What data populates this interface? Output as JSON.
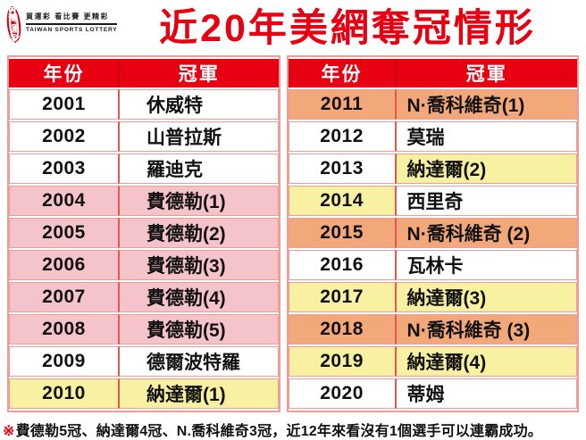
{
  "logo": {
    "circle_top": "台灣",
    "circle_bottom": "運彩",
    "slogan": "買運彩 看比賽 更精彩",
    "name_en": "TAIWAN SPORTS LOTTERY"
  },
  "title": "近20年美網奪冠情形",
  "table_headers": {
    "year": "年份",
    "champion": "冠軍"
  },
  "tables": {
    "left": [
      {
        "year": "2001",
        "champion": "休威特",
        "year_bg": "white",
        "champion_bg": "white"
      },
      {
        "year": "2002",
        "champion": "山普拉斯",
        "year_bg": "white",
        "champion_bg": "white"
      },
      {
        "year": "2003",
        "champion": "羅迪克",
        "year_bg": "white",
        "champion_bg": "white"
      },
      {
        "year": "2004",
        "champion": "費德勒(1)",
        "year_bg": "pink",
        "champion_bg": "pink"
      },
      {
        "year": "2005",
        "champion": "費德勒(2)",
        "year_bg": "pink",
        "champion_bg": "pink"
      },
      {
        "year": "2006",
        "champion": "費德勒(3)",
        "year_bg": "pink",
        "champion_bg": "pink"
      },
      {
        "year": "2007",
        "champion": "費德勒(4)",
        "year_bg": "pink",
        "champion_bg": "pink"
      },
      {
        "year": "2008",
        "champion": "費德勒(5)",
        "year_bg": "pink",
        "champion_bg": "pink"
      },
      {
        "year": "2009",
        "champion": "德爾波特羅",
        "year_bg": "white",
        "champion_bg": "white"
      },
      {
        "year": "2010",
        "champion": "納達爾(1)",
        "year_bg": "yellow",
        "champion_bg": "yellow"
      }
    ],
    "right": [
      {
        "year": "2011",
        "champion": "N·喬科維奇(1)",
        "year_bg": "orange",
        "champion_bg": "orange"
      },
      {
        "year": "2012",
        "champion": "莫瑞",
        "year_bg": "white",
        "champion_bg": "white"
      },
      {
        "year": "2013",
        "champion": "納達爾(2)",
        "year_bg": "white",
        "champion_bg": "yellow"
      },
      {
        "year": "2014",
        "champion": "西里奇",
        "year_bg": "yellow",
        "champion_bg": "white"
      },
      {
        "year": "2015",
        "champion": "N·喬科維奇 (2)",
        "year_bg": "orange",
        "champion_bg": "orange"
      },
      {
        "year": "2016",
        "champion": "瓦林卡",
        "year_bg": "white",
        "champion_bg": "white"
      },
      {
        "year": "2017",
        "champion": "納達爾(3)",
        "year_bg": "yellow",
        "champion_bg": "yellow"
      },
      {
        "year": "2018",
        "champion": "N·喬科維奇 (3)",
        "year_bg": "orange",
        "champion_bg": "orange"
      },
      {
        "year": "2019",
        "champion": "納達爾(4)",
        "year_bg": "yellow",
        "champion_bg": "yellow"
      },
      {
        "year": "2020",
        "champion": "蒂姆",
        "year_bg": "white",
        "champion_bg": "white"
      }
    ]
  },
  "footnote": {
    "marker": "※",
    "text": "費德勒5冠、納達爾4冠、N.喬科維奇3冠，近12年來看沒有1個選手可以連霸成功。"
  },
  "colors": {
    "header_red": "#E60012",
    "logo_red": "#D7000F",
    "pink": "#F5C3CA",
    "yellow": "#F8F1A2",
    "orange": "#F2A878",
    "white": "#FFFFFF",
    "border_pink": "#F19C96",
    "divider_red": "#E2574E",
    "header_divider": "#C7000E"
  },
  "chart_data": {
    "type": "table",
    "title": "近20年美網奪冠情形",
    "columns": [
      "年份",
      "冠軍"
    ],
    "rows": [
      [
        "2001",
        "休威特"
      ],
      [
        "2002",
        "山普拉斯"
      ],
      [
        "2003",
        "羅迪克"
      ],
      [
        "2004",
        "費德勒(1)"
      ],
      [
        "2005",
        "費德勒(2)"
      ],
      [
        "2006",
        "費德勒(3)"
      ],
      [
        "2007",
        "費德勒(4)"
      ],
      [
        "2008",
        "費德勒(5)"
      ],
      [
        "2009",
        "德爾波特羅"
      ],
      [
        "2010",
        "納達爾(1)"
      ],
      [
        "2011",
        "N·喬科維奇(1)"
      ],
      [
        "2012",
        "莫瑞"
      ],
      [
        "2013",
        "納達爾(2)"
      ],
      [
        "2014",
        "西里奇"
      ],
      [
        "2015",
        "N·喬科維奇 (2)"
      ],
      [
        "2016",
        "瓦林卡"
      ],
      [
        "2017",
        "納達爾(3)"
      ],
      [
        "2018",
        "N·喬科維奇 (3)"
      ],
      [
        "2019",
        "納達爾(4)"
      ],
      [
        "2020",
        "蒂姆"
      ]
    ],
    "row_highlights": {
      "pink_federer": [
        "2004",
        "2005",
        "2006",
        "2007",
        "2008"
      ],
      "yellow_nadal": [
        "2010",
        "2013",
        "2014",
        "2017",
        "2019"
      ],
      "orange_djokovic": [
        "2011",
        "2015",
        "2018"
      ]
    },
    "note": "費德勒5冠、納達爾4冠、N.喬科維奇3冠，近12年來看沒有1個選手可以連霸成功。"
  }
}
